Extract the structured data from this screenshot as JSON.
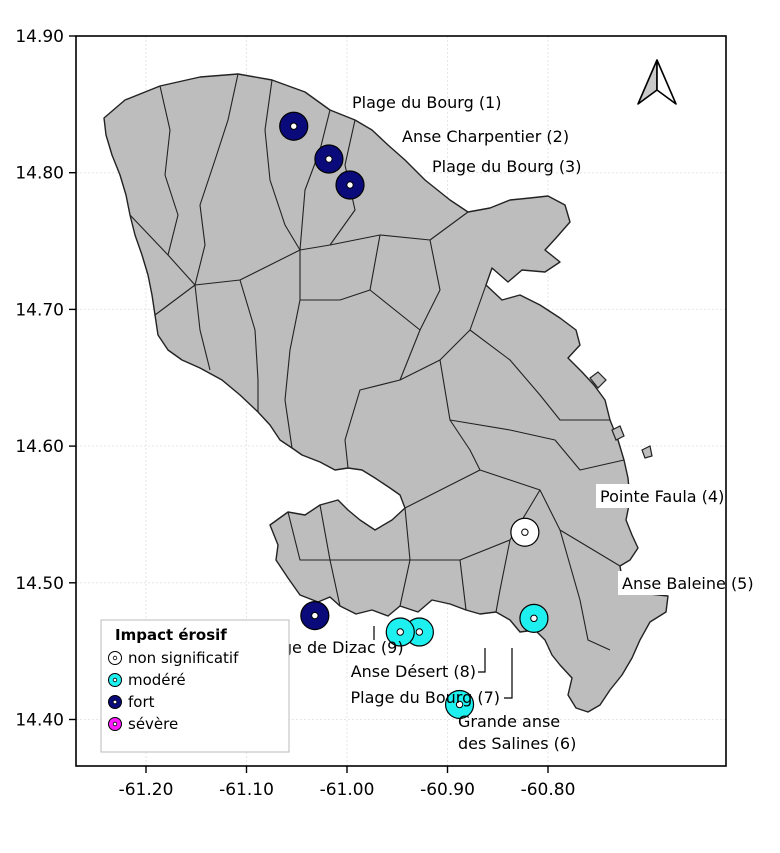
{
  "axes": {
    "x_ticks": [
      "-61.20",
      "-61.10",
      "-61.00",
      "-60.90",
      "-60.80"
    ],
    "y_ticks": [
      "14.90",
      "14.80",
      "14.70",
      "14.60",
      "14.50",
      "14.40"
    ],
    "x_values": [
      -61.2,
      -61.1,
      -61.0,
      -60.9,
      -60.8
    ],
    "y_values": [
      14.9,
      14.8,
      14.7,
      14.6,
      14.5,
      14.4
    ],
    "xlim": [
      -61.25,
      -60.77
    ],
    "ylim": [
      14.363,
      14.902
    ],
    "grid": true
  },
  "colors": {
    "land": "#bdbdbd",
    "non significatif": "#ffffff",
    "modéré": "#1ef0f0",
    "fort": "#0a0a7a",
    "sévère": "#ff19ff"
  },
  "north_arrow": "north-arrow-icon",
  "sites": [
    {
      "label": "Plage du Bourg (1)",
      "lon": -61.053,
      "lat": 14.834,
      "impact": "fort"
    },
    {
      "label": "Anse Charpentier (2)",
      "lon": -61.018,
      "lat": 14.81,
      "impact": "fort"
    },
    {
      "label": "Plage du Bourg (3)",
      "lon": -60.997,
      "lat": 14.791,
      "impact": "fort"
    },
    {
      "label": "Pointe Faula (4)",
      "lon": -60.823,
      "lat": 14.537,
      "impact": "non significatif"
    },
    {
      "label": "Anse Baleine (5)",
      "lon": -60.814,
      "lat": 14.474,
      "impact": "modéré"
    },
    {
      "label": "Grande anse des Salines (6)",
      "lon": -60.888,
      "lat": 14.411,
      "impact": "modéré"
    },
    {
      "label": "Plage du Bourg (7)",
      "lon": -60.928,
      "lat": 14.464,
      "impact": "modéré"
    },
    {
      "label": "Anse Désert (8)",
      "lon": -60.947,
      "lat": 14.464,
      "impact": "modéré"
    },
    {
      "label": "Plage de Dizac (9)",
      "lon": -61.032,
      "lat": 14.476,
      "impact": "fort"
    }
  ],
  "legend": {
    "title": "Impact érosif",
    "placement": "bottom-left",
    "items": [
      {
        "label": "non significatif",
        "color": "#ffffff"
      },
      {
        "label": "modéré",
        "color": "#1ef0f0"
      },
      {
        "label": "fort",
        "color": "#0a0a7a"
      },
      {
        "label": "sévère",
        "color": "#ff19ff"
      }
    ]
  }
}
